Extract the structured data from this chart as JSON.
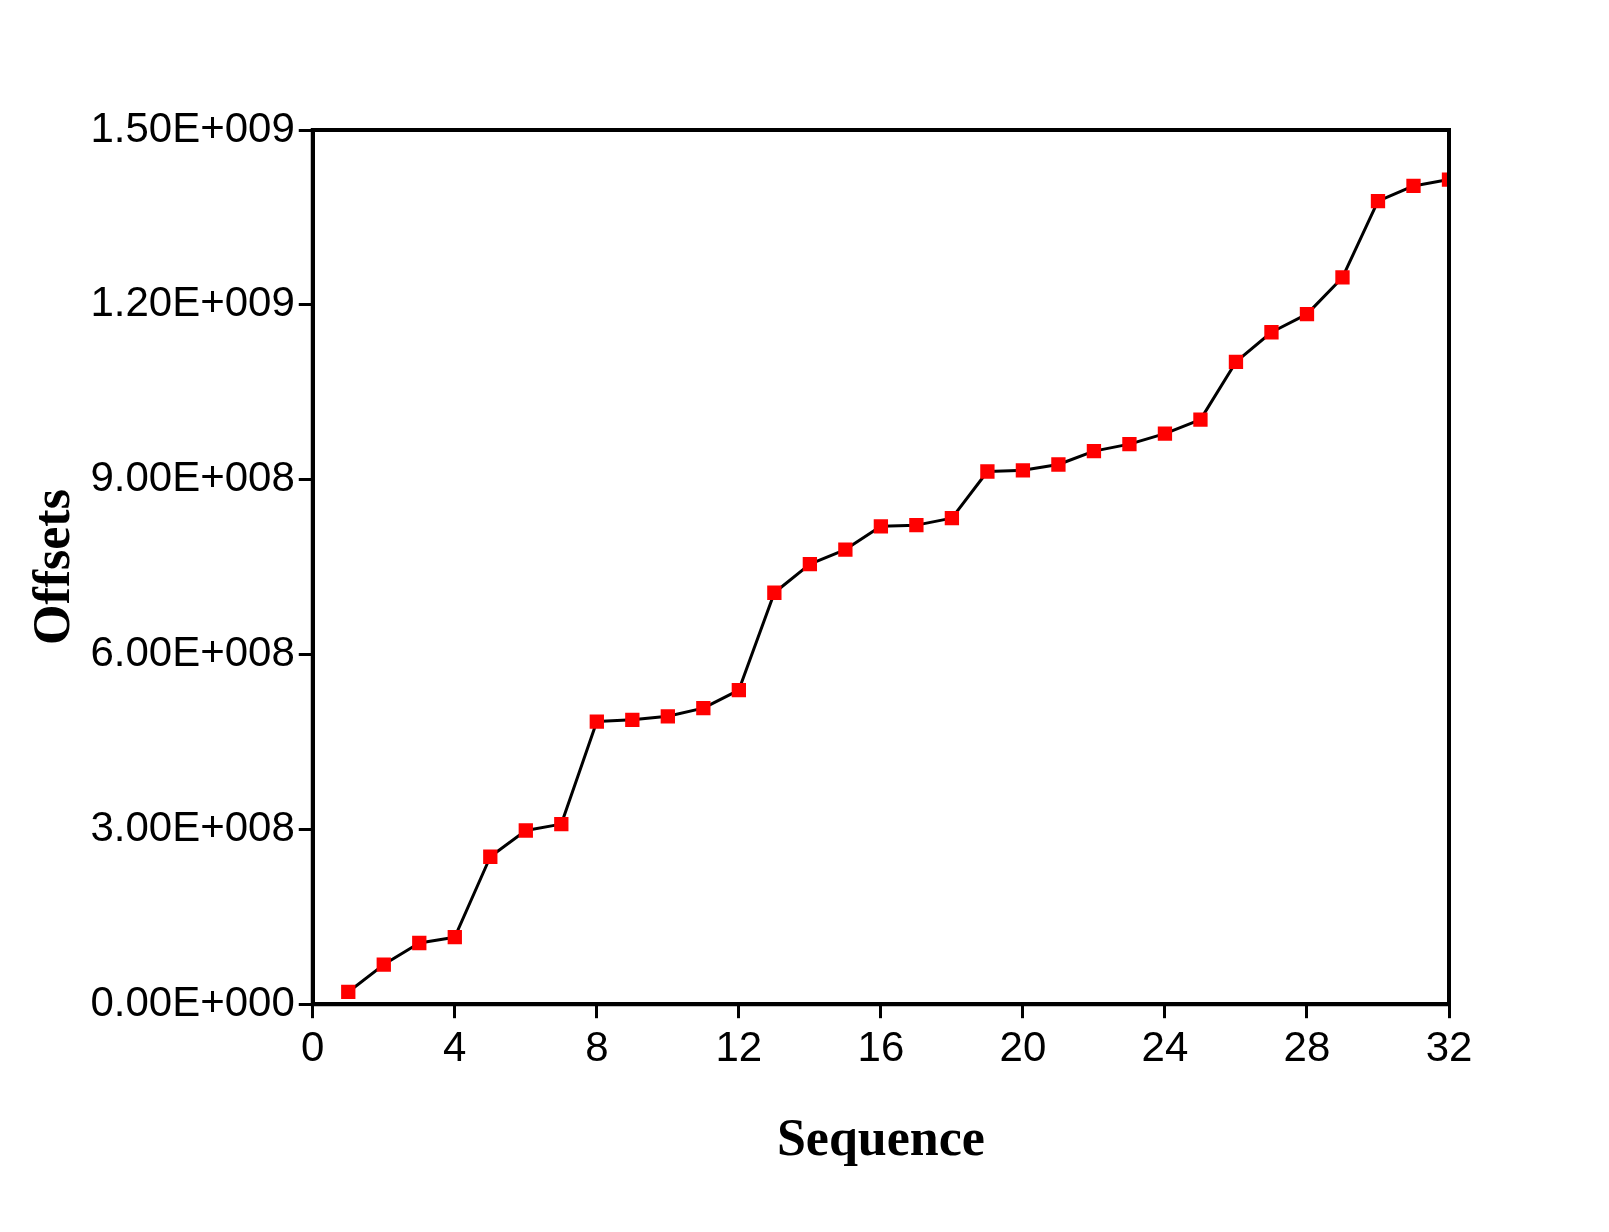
{
  "chart_data": {
    "type": "line",
    "xlabel": "Sequence",
    "ylabel": "Offsets",
    "x": [
      1,
      2,
      3,
      4,
      5,
      6,
      7,
      8,
      9,
      10,
      11,
      12,
      13,
      14,
      15,
      16,
      17,
      18,
      19,
      20,
      21,
      22,
      23,
      24,
      25,
      26,
      27,
      28,
      29,
      30,
      31,
      32
    ],
    "series": [
      {
        "color": "#ff0000",
        "values": [
          21000000,
          68000000,
          105000000,
          115000000,
          253000000,
          298000000,
          309000000,
          485000000,
          488000000,
          494000000,
          508000000,
          539000000,
          706000000,
          755000000,
          780000000,
          820000000,
          822000000,
          834000000,
          914000000,
          916000000,
          926000000,
          949000000,
          961000000,
          979000000,
          1003000000,
          1102000000,
          1153000000,
          1184000000,
          1247000000,
          1378000000,
          1404000000,
          1415000000
        ]
      }
    ],
    "xlim": [
      0,
      32
    ],
    "xticks": [
      0,
      4,
      8,
      12,
      16,
      20,
      24,
      28,
      32
    ],
    "ylim": [
      0,
      1500000000
    ],
    "yticks": [
      {
        "value": 0,
        "label": "0.00E+000"
      },
      {
        "value": 300000000,
        "label": "3.00E+008"
      },
      {
        "value": 600000000,
        "label": "6.00E+008"
      },
      {
        "value": 900000000,
        "label": "9.00E+008"
      },
      {
        "value": 1200000000,
        "label": "1.20E+009"
      },
      {
        "value": 1500000000,
        "label": "1.50E+009"
      }
    ],
    "grid": false,
    "legend": false,
    "marker": "square",
    "line_style": "solid"
  }
}
